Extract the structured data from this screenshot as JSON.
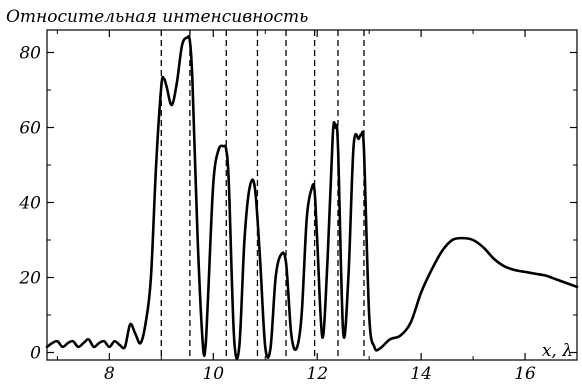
{
  "chart_data": {
    "type": "line",
    "ylabel": "Относительная интенсивность",
    "xlabel": "x, λ",
    "xlim": [
      6.8,
      17.0
    ],
    "ylim": [
      -2,
      86
    ],
    "x_ticks": [
      8,
      10,
      12,
      14,
      16
    ],
    "x_tick_labels": [
      "8",
      "10",
      "12",
      "14",
      "16"
    ],
    "y_ticks": [
      0,
      20,
      40,
      60,
      80
    ],
    "y_tick_labels": [
      "0",
      "20",
      "40",
      "60",
      "80"
    ],
    "grid": false,
    "series": [
      {
        "x": [
          6.8,
          6.9,
          7.0,
          7.1,
          7.2,
          7.3,
          7.4,
          7.5,
          7.6,
          7.7,
          7.8,
          7.9,
          8.0,
          8.1,
          8.2,
          8.3,
          8.4,
          8.5,
          8.6,
          8.7,
          8.8,
          8.9,
          9.0,
          9.05,
          9.1,
          9.2,
          9.3,
          9.4,
          9.5,
          9.55,
          9.6,
          9.7,
          9.8,
          9.85,
          9.9,
          10.0,
          10.1,
          10.2,
          10.25,
          10.3,
          10.4,
          10.5,
          10.6,
          10.7,
          10.8,
          10.9,
          11.0,
          11.1,
          11.2,
          11.3,
          11.4,
          11.5,
          11.6,
          11.7,
          11.8,
          11.9,
          11.95,
          12.0,
          12.1,
          12.2,
          12.3,
          12.35,
          12.4,
          12.5,
          12.6,
          12.7,
          12.8,
          12.85,
          12.9,
          13.0,
          13.1,
          13.2,
          13.4,
          13.6,
          13.8,
          14.0,
          14.2,
          14.4,
          14.6,
          14.8,
          15.0,
          15.2,
          15.4,
          15.6,
          15.8,
          16.0,
          16.2,
          16.4,
          16.6,
          16.8,
          17.0
        ],
        "y": [
          1.5,
          2.5,
          3.0,
          1.5,
          2.5,
          3.0,
          1.5,
          2.5,
          3.5,
          1.5,
          2.5,
          3.0,
          1.5,
          3.0,
          2.0,
          1.5,
          7.5,
          5.0,
          2.5,
          8.0,
          20.0,
          50.0,
          71.0,
          73.0,
          71.0,
          66.0,
          72.0,
          82.0,
          84.0,
          83.0,
          72.0,
          30.0,
          2.0,
          1.5,
          15.0,
          45.0,
          54.0,
          55.0,
          54.0,
          45.0,
          4.0,
          1.5,
          30.0,
          44.0,
          44.0,
          25.0,
          1.5,
          1.0,
          20.0,
          26.0,
          24.0,
          5.0,
          1.0,
          10.0,
          36.0,
          44.0,
          43.0,
          30.0,
          4.0,
          25.0,
          58.0,
          60.0,
          55.0,
          5.5,
          20.0,
          55.0,
          57.0,
          58.0,
          54.0,
          10.0,
          1.5,
          1.0,
          3.5,
          4.5,
          8.0,
          16.0,
          22.0,
          27.0,
          30.0,
          30.5,
          30.0,
          28.0,
          25.0,
          23.0,
          22.0,
          21.5,
          21.0,
          20.5,
          19.5,
          18.5,
          17.5
        ]
      }
    ],
    "dashed_lines_x": [
      9.0,
      9.55,
      10.25,
      10.85,
      11.4,
      11.95,
      12.4,
      12.9
    ]
  }
}
